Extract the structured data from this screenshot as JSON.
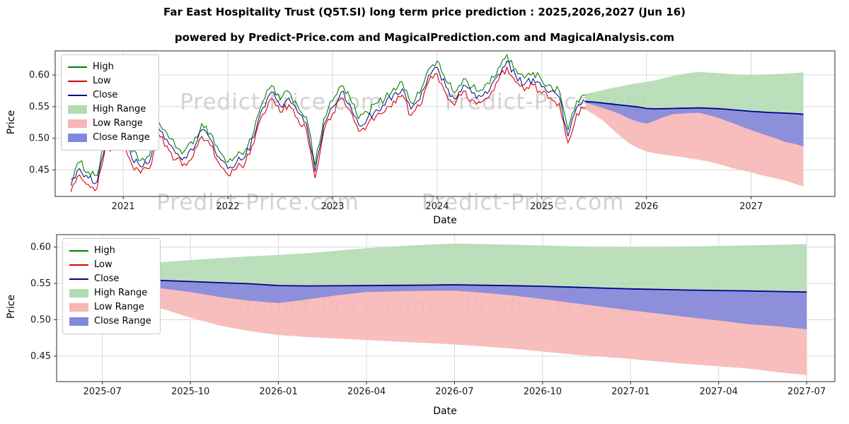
{
  "page": {
    "title": "Far East Hospitality Trust (Q5T.SI) long term price prediction : 2025,2026,2027 (Jun 16)",
    "subtitle": "powered by Predict-Price.com and MagicalPrediction.com and MagicalAnalysis.com",
    "watermark": "Predict-Price.com"
  },
  "colors": {
    "high": "#008000",
    "low": "#dd0000",
    "close": "#00008b",
    "high_range": "#b2dcb2",
    "low_range": "#f7b6b6",
    "close_range": "#8289dd",
    "grid": "#d8d8d8",
    "spine": "#2b2b2b",
    "tick_text": "#1a1a1a",
    "watermark": "#d2d2d2"
  },
  "legend": [
    {
      "label": "High",
      "type": "line",
      "color_key": "high"
    },
    {
      "label": "Low",
      "type": "line",
      "color_key": "low"
    },
    {
      "label": "Close",
      "type": "line",
      "color_key": "close"
    },
    {
      "label": "High Range",
      "type": "patch",
      "color_key": "high_range"
    },
    {
      "label": "Low Range",
      "type": "patch",
      "color_key": "low_range"
    },
    {
      "label": "Close Range",
      "type": "patch",
      "color_key": "close_range"
    }
  ],
  "chart_data": [
    {
      "type": "line",
      "name": "historical prices with 2025-2027 forecast ranges",
      "xlabel": "Date",
      "ylabel": "Price",
      "xlim": [
        2020.35,
        2027.8
      ],
      "ylim": [
        0.408,
        0.638
      ],
      "grid": true,
      "legend_position": "upper left",
      "xticks": [
        {
          "v": 2021,
          "label": "2021"
        },
        {
          "v": 2022,
          "label": "2022"
        },
        {
          "v": 2023,
          "label": "2023"
        },
        {
          "v": 2024,
          "label": "2024"
        },
        {
          "v": 2025,
          "label": "2025"
        },
        {
          "v": 2026,
          "label": "2026"
        },
        {
          "v": 2027,
          "label": "2027"
        }
      ],
      "yticks": [
        {
          "v": 0.45,
          "label": "0.45"
        },
        {
          "v": 0.5,
          "label": "0.50"
        },
        {
          "v": 0.55,
          "label": "0.55"
        },
        {
          "v": 0.6,
          "label": "0.60"
        }
      ],
      "history": {
        "x_start": 2020.5,
        "x_step": 0.0833333,
        "close": [
          0.425,
          0.452,
          0.437,
          0.431,
          0.498,
          0.492,
          0.503,
          0.468,
          0.455,
          0.462,
          0.518,
          0.498,
          0.476,
          0.47,
          0.481,
          0.513,
          0.498,
          0.47,
          0.452,
          0.462,
          0.471,
          0.502,
          0.548,
          0.573,
          0.551,
          0.563,
          0.541,
          0.524,
          0.447,
          0.521,
          0.549,
          0.573,
          0.554,
          0.521,
          0.531,
          0.545,
          0.552,
          0.569,
          0.578,
          0.546,
          0.561,
          0.599,
          0.612,
          0.581,
          0.562,
          0.584,
          0.571,
          0.566,
          0.576,
          0.601,
          0.622,
          0.599,
          0.585,
          0.594,
          0.581,
          0.574,
          0.565,
          0.503,
          0.549,
          0.558
        ],
        "high": [
          0.435,
          0.462,
          0.447,
          0.441,
          0.508,
          0.502,
          0.513,
          0.478,
          0.465,
          0.472,
          0.528,
          0.508,
          0.486,
          0.48,
          0.491,
          0.523,
          0.508,
          0.48,
          0.462,
          0.472,
          0.481,
          0.512,
          0.558,
          0.583,
          0.561,
          0.573,
          0.551,
          0.534,
          0.457,
          0.531,
          0.559,
          0.583,
          0.564,
          0.531,
          0.541,
          0.555,
          0.562,
          0.579,
          0.588,
          0.556,
          0.571,
          0.609,
          0.622,
          0.591,
          0.572,
          0.594,
          0.581,
          0.576,
          0.586,
          0.611,
          0.632,
          0.609,
          0.595,
          0.604,
          0.591,
          0.584,
          0.575,
          0.513,
          0.559,
          0.568
        ],
        "low": [
          0.415,
          0.442,
          0.427,
          0.421,
          0.488,
          0.482,
          0.493,
          0.458,
          0.445,
          0.452,
          0.508,
          0.488,
          0.466,
          0.46,
          0.471,
          0.503,
          0.488,
          0.46,
          0.442,
          0.452,
          0.461,
          0.492,
          0.538,
          0.563,
          0.541,
          0.553,
          0.531,
          0.514,
          0.437,
          0.511,
          0.539,
          0.563,
          0.544,
          0.511,
          0.521,
          0.535,
          0.542,
          0.559,
          0.568,
          0.536,
          0.551,
          0.589,
          0.602,
          0.571,
          0.552,
          0.574,
          0.561,
          0.556,
          0.566,
          0.591,
          0.612,
          0.589,
          0.575,
          0.584,
          0.571,
          0.564,
          0.555,
          0.493,
          0.539,
          0.548
        ]
      },
      "forecast": {
        "x": [
          2025.4167,
          2025.5,
          2025.5833,
          2025.6667,
          2025.75,
          2025.8333,
          2025.9167,
          2026.0,
          2026.0833,
          2026.1667,
          2026.25,
          2026.3333,
          2026.4167,
          2026.5,
          2026.5833,
          2026.6667,
          2026.75,
          2026.8333,
          2026.9167,
          2027.0,
          2027.0833,
          2027.1667,
          2027.25,
          2027.3333,
          2027.4167,
          2027.5
        ],
        "close": [
          0.558,
          0.557,
          0.5555,
          0.554,
          0.5525,
          0.551,
          0.5495,
          0.547,
          0.5465,
          0.5467,
          0.547,
          0.5473,
          0.5476,
          0.548,
          0.5474,
          0.5468,
          0.546,
          0.5448,
          0.5436,
          0.5424,
          0.5416,
          0.5408,
          0.5402,
          0.5396,
          0.5388,
          0.538
        ],
        "close_lower": [
          0.556,
          0.552,
          0.5478,
          0.5432,
          0.538,
          0.5312,
          0.5262,
          0.523,
          0.528,
          0.5336,
          0.538,
          0.539,
          0.5398,
          0.54,
          0.537,
          0.5332,
          0.5284,
          0.5232,
          0.518,
          0.513,
          0.5082,
          0.5034,
          0.499,
          0.494,
          0.491,
          0.487
        ],
        "high_upper": [
          0.57,
          0.573,
          0.576,
          0.579,
          0.582,
          0.5848,
          0.5872,
          0.589,
          0.5916,
          0.595,
          0.5984,
          0.601,
          0.603,
          0.6048,
          0.604,
          0.603,
          0.602,
          0.601,
          0.6002,
          0.6,
          0.6004,
          0.6008,
          0.6014,
          0.6022,
          0.603,
          0.604
        ],
        "low_lower": [
          0.545,
          0.5375,
          0.528,
          0.5155,
          0.503,
          0.492,
          0.4845,
          0.479,
          0.4762,
          0.4742,
          0.4722,
          0.4702,
          0.4682,
          0.466,
          0.4634,
          0.4602,
          0.4564,
          0.4524,
          0.4492,
          0.4462,
          0.4424,
          0.439,
          0.436,
          0.433,
          0.428,
          0.424
        ]
      }
    },
    {
      "type": "area",
      "name": "forecast detail 2025-07 to 2027-07",
      "xlabel": "Date",
      "ylabel": "Price",
      "xlim": [
        2025.37,
        2027.58
      ],
      "ylim": [
        0.415,
        0.617
      ],
      "grid": true,
      "legend_position": "upper left",
      "xticks": [
        {
          "v": 2025.5,
          "label": "2025-07"
        },
        {
          "v": 2025.75,
          "label": "2025-10"
        },
        {
          "v": 2026.0,
          "label": "2026-01"
        },
        {
          "v": 2026.25,
          "label": "2026-04"
        },
        {
          "v": 2026.5,
          "label": "2026-07"
        },
        {
          "v": 2026.75,
          "label": "2026-10"
        },
        {
          "v": 2027.0,
          "label": "2027-01"
        },
        {
          "v": 2027.25,
          "label": "2027-04"
        },
        {
          "v": 2027.5,
          "label": "2027-07"
        }
      ],
      "yticks": [
        {
          "v": 0.45,
          "label": "0.45"
        },
        {
          "v": 0.5,
          "label": "0.50"
        },
        {
          "v": 0.55,
          "label": "0.55"
        },
        {
          "v": 0.6,
          "label": "0.60"
        }
      ],
      "forecast": {
        "x": [
          2025.4167,
          2025.5,
          2025.5833,
          2025.6667,
          2025.75,
          2025.8333,
          2025.9167,
          2026.0,
          2026.0833,
          2026.1667,
          2026.25,
          2026.3333,
          2026.4167,
          2026.5,
          2026.5833,
          2026.6667,
          2026.75,
          2026.8333,
          2026.9167,
          2027.0,
          2027.0833,
          2027.1667,
          2027.25,
          2027.3333,
          2027.4167,
          2027.5
        ],
        "close": [
          0.558,
          0.557,
          0.5555,
          0.554,
          0.5525,
          0.551,
          0.5495,
          0.547,
          0.5465,
          0.5467,
          0.547,
          0.5473,
          0.5476,
          0.548,
          0.5474,
          0.5468,
          0.546,
          0.5448,
          0.5436,
          0.5424,
          0.5416,
          0.5408,
          0.5402,
          0.5396,
          0.5388,
          0.538
        ],
        "close_lower": [
          0.556,
          0.552,
          0.5478,
          0.5432,
          0.538,
          0.5312,
          0.5262,
          0.523,
          0.528,
          0.5336,
          0.538,
          0.539,
          0.5398,
          0.54,
          0.537,
          0.5332,
          0.5284,
          0.5232,
          0.518,
          0.513,
          0.5082,
          0.5034,
          0.499,
          0.494,
          0.491,
          0.487
        ],
        "high_upper": [
          0.57,
          0.573,
          0.576,
          0.579,
          0.582,
          0.5848,
          0.5872,
          0.589,
          0.5916,
          0.595,
          0.5984,
          0.601,
          0.603,
          0.6048,
          0.604,
          0.603,
          0.602,
          0.601,
          0.6002,
          0.6,
          0.6004,
          0.6008,
          0.6014,
          0.6022,
          0.603,
          0.604
        ],
        "low_lower": [
          0.545,
          0.5375,
          0.528,
          0.5155,
          0.503,
          0.492,
          0.4845,
          0.479,
          0.4762,
          0.4742,
          0.4722,
          0.4702,
          0.4682,
          0.466,
          0.4634,
          0.4602,
          0.4564,
          0.4524,
          0.4492,
          0.4462,
          0.4424,
          0.439,
          0.436,
          0.433,
          0.428,
          0.424
        ]
      }
    }
  ]
}
